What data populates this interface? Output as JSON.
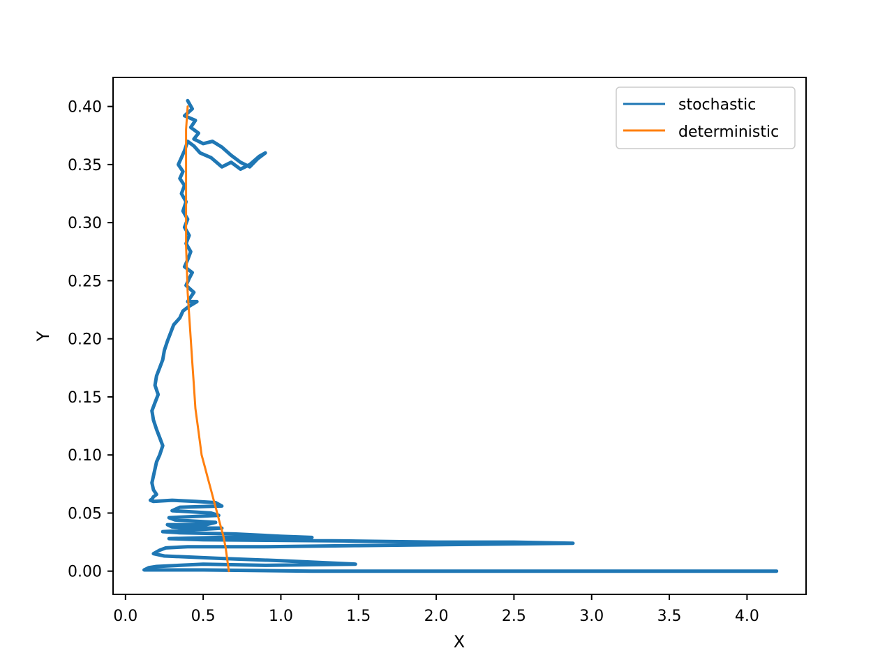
{
  "chart_data": {
    "type": "line",
    "title": "",
    "xlabel": "X",
    "ylabel": "Y",
    "xlim": [
      -0.08,
      4.38
    ],
    "ylim": [
      -0.02,
      0.425
    ],
    "xticks": [
      0.0,
      0.5,
      1.0,
      1.5,
      2.0,
      2.5,
      3.0,
      3.5,
      4.0
    ],
    "xtick_labels": [
      "0.0",
      "0.5",
      "1.0",
      "1.5",
      "2.0",
      "2.5",
      "3.0",
      "3.5",
      "4.0"
    ],
    "yticks": [
      0.0,
      0.05,
      0.1,
      0.15,
      0.2,
      0.25,
      0.3,
      0.35,
      0.4
    ],
    "ytick_labels": [
      "0.00",
      "0.05",
      "0.10",
      "0.15",
      "0.20",
      "0.25",
      "0.30",
      "0.35",
      "0.40"
    ],
    "grid": false,
    "legend_position": "top-right",
    "series": [
      {
        "name": "stochastic",
        "color": "#1f77b4",
        "x": [
          0.4,
          0.43,
          0.38,
          0.45,
          0.42,
          0.47,
          0.44,
          0.5,
          0.56,
          0.62,
          0.68,
          0.74,
          0.8,
          0.85,
          0.9,
          0.86,
          0.8,
          0.74,
          0.68,
          0.62,
          0.55,
          0.48,
          0.44,
          0.4,
          0.38,
          0.36,
          0.34,
          0.37,
          0.35,
          0.38,
          0.36,
          0.39,
          0.37,
          0.4,
          0.38,
          0.41,
          0.39,
          0.42,
          0.4,
          0.38,
          0.43,
          0.41,
          0.39,
          0.44,
          0.42,
          0.4,
          0.46,
          0.41,
          0.37,
          0.35,
          0.31,
          0.29,
          0.27,
          0.25,
          0.24,
          0.22,
          0.2,
          0.19,
          0.21,
          0.19,
          0.17,
          0.18,
          0.2,
          0.22,
          0.24,
          0.22,
          0.2,
          0.19,
          0.18,
          0.17,
          0.18,
          0.2,
          0.18,
          0.17,
          0.16,
          0.18,
          0.3,
          0.45,
          0.58,
          0.62,
          0.35,
          0.3,
          0.55,
          0.6,
          0.28,
          0.32,
          0.58,
          0.52,
          0.27,
          0.3,
          0.62,
          0.5,
          0.24,
          0.35,
          0.7,
          1.0,
          1.2,
          0.6,
          0.28,
          0.5,
          1.4,
          2.0,
          2.5,
          2.88,
          2.2,
          1.5,
          0.9,
          0.4,
          0.26,
          0.22,
          0.18,
          0.25,
          0.6,
          1.0,
          1.48,
          0.9,
          0.5,
          0.2,
          0.15,
          0.12,
          0.5,
          1.2,
          2.0,
          3.0,
          3.6,
          4.19
        ],
        "y": [
          0.405,
          0.398,
          0.392,
          0.388,
          0.382,
          0.377,
          0.372,
          0.368,
          0.37,
          0.365,
          0.358,
          0.352,
          0.348,
          0.355,
          0.36,
          0.357,
          0.35,
          0.346,
          0.352,
          0.348,
          0.356,
          0.36,
          0.366,
          0.37,
          0.362,
          0.356,
          0.35,
          0.344,
          0.338,
          0.332,
          0.325,
          0.318,
          0.31,
          0.303,
          0.296,
          0.289,
          0.282,
          0.275,
          0.268,
          0.262,
          0.257,
          0.252,
          0.246,
          0.24,
          0.236,
          0.232,
          0.232,
          0.228,
          0.224,
          0.218,
          0.212,
          0.205,
          0.198,
          0.19,
          0.182,
          0.175,
          0.168,
          0.16,
          0.152,
          0.145,
          0.138,
          0.13,
          0.122,
          0.115,
          0.108,
          0.1,
          0.094,
          0.088,
          0.082,
          0.076,
          0.07,
          0.066,
          0.064,
          0.062,
          0.061,
          0.06,
          0.061,
          0.06,
          0.059,
          0.056,
          0.055,
          0.052,
          0.05,
          0.048,
          0.046,
          0.044,
          0.042,
          0.04,
          0.04,
          0.038,
          0.037,
          0.036,
          0.034,
          0.033,
          0.032,
          0.03,
          0.029,
          0.029,
          0.028,
          0.027,
          0.026,
          0.025,
          0.025,
          0.024,
          0.023,
          0.022,
          0.021,
          0.021,
          0.02,
          0.018,
          0.015,
          0.013,
          0.011,
          0.009,
          0.006,
          0.005,
          0.006,
          0.004,
          0.003,
          0.001,
          0.001,
          0.0,
          0.0,
          0.0,
          0.0,
          0.0
        ]
      },
      {
        "name": "deterministic",
        "color": "#ff7f0e",
        "x": [
          0.4,
          0.39,
          0.39,
          0.39,
          0.39,
          0.39,
          0.39,
          0.395,
          0.4,
          0.41,
          0.42,
          0.43,
          0.44,
          0.45,
          0.47,
          0.49,
          0.51,
          0.53,
          0.55,
          0.57,
          0.59,
          0.61,
          0.63,
          0.645,
          0.655,
          0.665
        ],
        "y": [
          0.4,
          0.38,
          0.36,
          0.34,
          0.32,
          0.3,
          0.28,
          0.26,
          0.24,
          0.22,
          0.2,
          0.18,
          0.16,
          0.14,
          0.12,
          0.1,
          0.09,
          0.08,
          0.07,
          0.06,
          0.05,
          0.04,
          0.03,
          0.02,
          0.01,
          0.0
        ]
      }
    ]
  }
}
